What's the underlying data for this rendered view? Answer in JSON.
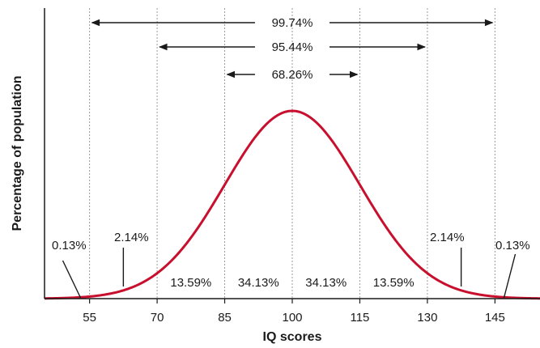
{
  "chart_data": {
    "type": "line",
    "title": "",
    "xlabel": "IQ scores",
    "ylabel": "Percentage of population",
    "xlim": [
      45,
      155
    ],
    "curve": {
      "name": "",
      "mean": 100,
      "sd": 15,
      "color": "#c8102e"
    },
    "x_ticks": [
      55,
      70,
      85,
      100,
      115,
      130,
      145
    ],
    "tick_labels": [
      "55",
      "70",
      "85",
      "100",
      "115",
      "130",
      "145"
    ],
    "vertical_guides": [
      55,
      70,
      85,
      100,
      115,
      130,
      145
    ],
    "grid": false,
    "segments": [
      {
        "label": "13.59%",
        "from": 70,
        "to": 85
      },
      {
        "label": "34.13%",
        "from": 85,
        "to": 100
      },
      {
        "label": "34.13%",
        "from": 100,
        "to": 115
      },
      {
        "label": "13.59%",
        "from": 115,
        "to": 130
      }
    ],
    "tail_labels": [
      {
        "label": "0.13%",
        "x": 53,
        "side": "left"
      },
      {
        "label": "2.14%",
        "x": 62.5,
        "side": "left"
      },
      {
        "label": "2.14%",
        "x": 137.5,
        "side": "right"
      },
      {
        "label": "0.13%",
        "x": 147,
        "side": "right"
      }
    ],
    "ranges": [
      {
        "label": "99.74%",
        "from": 55,
        "to": 145
      },
      {
        "label": "95.44%",
        "from": 70,
        "to": 130
      },
      {
        "label": "68.26%",
        "from": 85,
        "to": 115
      }
    ]
  }
}
